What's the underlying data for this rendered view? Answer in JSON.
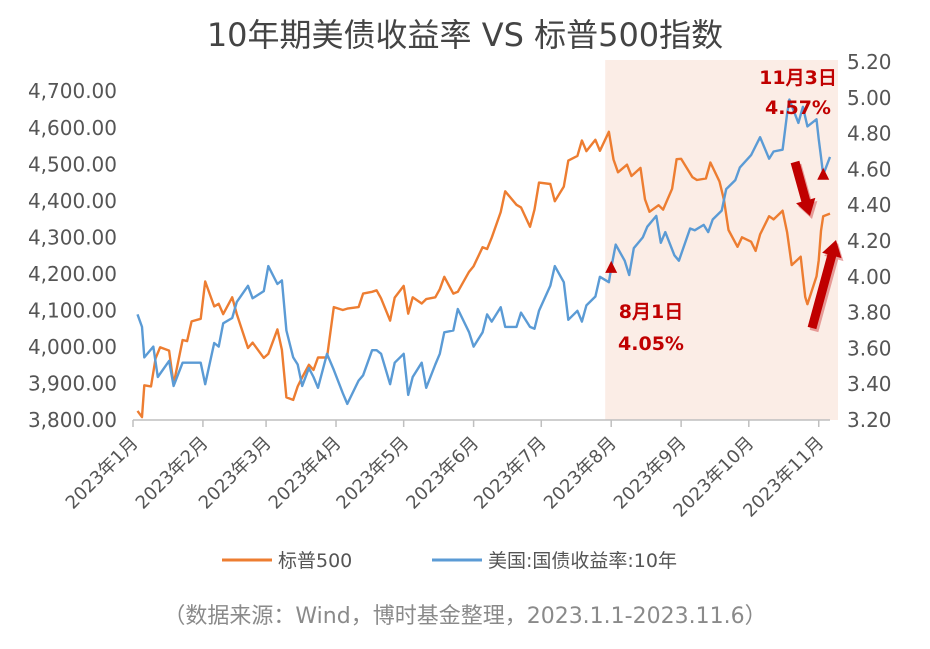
{
  "title": "10年期美债收益率 VS 标普500指数",
  "source_note": "（数据来源：Wind，博时基金整理，2023.1.1-2023.11.6）",
  "colors": {
    "sp500": "#ED7D31",
    "yield": "#5B9BD5",
    "highlight": "#FBEDE6",
    "annotation": "#C00000"
  },
  "chart_data": {
    "type": "line",
    "x_tick_labels": [
      "2023年1月",
      "2023年2月",
      "2023年3月",
      "2023年4月",
      "2023年5月",
      "2023年6月",
      "2023年7月",
      "2023年8月",
      "2023年9月",
      "2023年10月",
      "2023年11月"
    ],
    "x_range": [
      "2023-01-01",
      "2023-11-06"
    ],
    "y_left": {
      "ticks": [
        3800,
        3900,
        4000,
        4100,
        4200,
        4300,
        4400,
        4500,
        4600,
        4700
      ],
      "tick_labels": [
        "3,800.00",
        "3,900.00",
        "4,000.00",
        "4,100.00",
        "4,200.00",
        "4,300.00",
        "4,400.00",
        "4,500.00",
        "4,600.00",
        "4,700.00"
      ],
      "range": [
        3800,
        4780
      ]
    },
    "y_right": {
      "ticks": [
        3.2,
        3.4,
        3.6,
        3.8,
        4.0,
        4.2,
        4.4,
        4.6,
        4.8,
        5.0,
        5.2
      ],
      "tick_labels": [
        "3.20",
        "3.40",
        "3.60",
        "3.80",
        "4.00",
        "4.20",
        "4.40",
        "4.60",
        "4.80",
        "5.00",
        "5.20"
      ],
      "range": [
        3.2,
        5.2
      ]
    },
    "highlight_range": [
      "2023-08-01",
      "2023-11-06"
    ],
    "legend_position": "bottom",
    "series": [
      {
        "name": "标普500",
        "axis": "left",
        "points": [
          [
            "2023-01-03",
            3825
          ],
          [
            "2023-01-05",
            3808
          ],
          [
            "2023-01-06",
            3895
          ],
          [
            "2023-01-09",
            3892
          ],
          [
            "2023-01-11",
            3969
          ],
          [
            "2023-01-13",
            3999
          ],
          [
            "2023-01-17",
            3990
          ],
          [
            "2023-01-19",
            3898
          ],
          [
            "2023-01-23",
            4019
          ],
          [
            "2023-01-25",
            4016
          ],
          [
            "2023-01-27",
            4070
          ],
          [
            "2023-01-31",
            4077
          ],
          [
            "2023-02-02",
            4179
          ],
          [
            "2023-02-06",
            4111
          ],
          [
            "2023-02-08",
            4118
          ],
          [
            "2023-02-10",
            4090
          ],
          [
            "2023-02-14",
            4136
          ],
          [
            "2023-02-16",
            4090
          ],
          [
            "2023-02-21",
            3997
          ],
          [
            "2023-02-23",
            4012
          ],
          [
            "2023-02-28",
            3970
          ],
          [
            "2023-03-02",
            3981
          ],
          [
            "2023-03-06",
            4048
          ],
          [
            "2023-03-08",
            3992
          ],
          [
            "2023-03-10",
            3862
          ],
          [
            "2023-03-13",
            3855
          ],
          [
            "2023-03-15",
            3892
          ],
          [
            "2023-03-17",
            3917
          ],
          [
            "2023-03-20",
            3951
          ],
          [
            "2023-03-22",
            3937
          ],
          [
            "2023-03-24",
            3971
          ],
          [
            "2023-03-28",
            3971
          ],
          [
            "2023-03-31",
            4109
          ],
          [
            "2023-04-04",
            4101
          ],
          [
            "2023-04-06",
            4105
          ],
          [
            "2023-04-11",
            4109
          ],
          [
            "2023-04-13",
            4146
          ],
          [
            "2023-04-17",
            4151
          ],
          [
            "2023-04-19",
            4155
          ],
          [
            "2023-04-21",
            4133
          ],
          [
            "2023-04-25",
            4072
          ],
          [
            "2023-04-27",
            4135
          ],
          [
            "2023-05-01",
            4167
          ],
          [
            "2023-05-03",
            4091
          ],
          [
            "2023-05-05",
            4136
          ],
          [
            "2023-05-09",
            4119
          ],
          [
            "2023-05-11",
            4131
          ],
          [
            "2023-05-15",
            4136
          ],
          [
            "2023-05-17",
            4158
          ],
          [
            "2023-05-19",
            4192
          ],
          [
            "2023-05-23",
            4146
          ],
          [
            "2023-05-25",
            4151
          ],
          [
            "2023-05-30",
            4206
          ],
          [
            "2023-06-01",
            4221
          ],
          [
            "2023-06-05",
            4273
          ],
          [
            "2023-06-07",
            4268
          ],
          [
            "2023-06-09",
            4299
          ],
          [
            "2023-06-13",
            4369
          ],
          [
            "2023-06-15",
            4426
          ],
          [
            "2023-06-20",
            4389
          ],
          [
            "2023-06-22",
            4382
          ],
          [
            "2023-06-26",
            4329
          ],
          [
            "2023-06-28",
            4376
          ],
          [
            "2023-06-30",
            4450
          ],
          [
            "2023-07-05",
            4446
          ],
          [
            "2023-07-07",
            4399
          ],
          [
            "2023-07-11",
            4439
          ],
          [
            "2023-07-13",
            4510
          ],
          [
            "2023-07-17",
            4523
          ],
          [
            "2023-07-19",
            4565
          ],
          [
            "2023-07-21",
            4536
          ],
          [
            "2023-07-25",
            4567
          ],
          [
            "2023-07-27",
            4537
          ],
          [
            "2023-07-31",
            4589
          ],
          [
            "2023-08-02",
            4513
          ],
          [
            "2023-08-04",
            4478
          ],
          [
            "2023-08-08",
            4499
          ],
          [
            "2023-08-10",
            4468
          ],
          [
            "2023-08-14",
            4490
          ],
          [
            "2023-08-16",
            4404
          ],
          [
            "2023-08-18",
            4370
          ],
          [
            "2023-08-22",
            4388
          ],
          [
            "2023-08-24",
            4376
          ],
          [
            "2023-08-28",
            4433
          ],
          [
            "2023-08-30",
            4514
          ],
          [
            "2023-09-01",
            4515
          ],
          [
            "2023-09-06",
            4465
          ],
          [
            "2023-09-08",
            4457
          ],
          [
            "2023-09-12",
            4461
          ],
          [
            "2023-09-14",
            4505
          ],
          [
            "2023-09-18",
            4453
          ],
          [
            "2023-09-20",
            4402
          ],
          [
            "2023-09-22",
            4320
          ],
          [
            "2023-09-26",
            4274
          ],
          [
            "2023-09-28",
            4300
          ],
          [
            "2023-10-02",
            4288
          ],
          [
            "2023-10-04",
            4263
          ],
          [
            "2023-10-06",
            4308
          ],
          [
            "2023-10-10",
            4358
          ],
          [
            "2023-10-12",
            4349
          ],
          [
            "2023-10-16",
            4373
          ],
          [
            "2023-10-18",
            4314
          ],
          [
            "2023-10-20",
            4224
          ],
          [
            "2023-10-24",
            4247
          ],
          [
            "2023-10-26",
            4137
          ],
          [
            "2023-10-27",
            4117
          ],
          [
            "2023-10-31",
            4193
          ],
          [
            "2023-11-01",
            4237
          ],
          [
            "2023-11-02",
            4318
          ],
          [
            "2023-11-03",
            4358
          ],
          [
            "2023-11-06",
            4365
          ]
        ]
      },
      {
        "name": "美国:国债收益率:10年",
        "axis": "right",
        "points": [
          [
            "2023-01-03",
            3.79
          ],
          [
            "2023-01-05",
            3.72
          ],
          [
            "2023-01-06",
            3.55
          ],
          [
            "2023-01-10",
            3.61
          ],
          [
            "2023-01-12",
            3.44
          ],
          [
            "2023-01-17",
            3.53
          ],
          [
            "2023-01-19",
            3.39
          ],
          [
            "2023-01-23",
            3.52
          ],
          [
            "2023-01-27",
            3.52
          ],
          [
            "2023-01-31",
            3.52
          ],
          [
            "2023-02-02",
            3.4
          ],
          [
            "2023-02-06",
            3.63
          ],
          [
            "2023-02-08",
            3.61
          ],
          [
            "2023-02-10",
            3.74
          ],
          [
            "2023-02-14",
            3.77
          ],
          [
            "2023-02-16",
            3.86
          ],
          [
            "2023-02-21",
            3.95
          ],
          [
            "2023-02-23",
            3.88
          ],
          [
            "2023-02-28",
            3.92
          ],
          [
            "2023-03-02",
            4.06
          ],
          [
            "2023-03-06",
            3.96
          ],
          [
            "2023-03-08",
            3.98
          ],
          [
            "2023-03-10",
            3.7
          ],
          [
            "2023-03-13",
            3.55
          ],
          [
            "2023-03-15",
            3.51
          ],
          [
            "2023-03-17",
            3.39
          ],
          [
            "2023-03-20",
            3.49
          ],
          [
            "2023-03-22",
            3.44
          ],
          [
            "2023-03-24",
            3.38
          ],
          [
            "2023-03-28",
            3.57
          ],
          [
            "2023-03-31",
            3.48
          ],
          [
            "2023-04-04",
            3.35
          ],
          [
            "2023-04-06",
            3.29
          ],
          [
            "2023-04-11",
            3.42
          ],
          [
            "2023-04-13",
            3.45
          ],
          [
            "2023-04-17",
            3.59
          ],
          [
            "2023-04-19",
            3.59
          ],
          [
            "2023-04-21",
            3.57
          ],
          [
            "2023-04-25",
            3.4
          ],
          [
            "2023-04-27",
            3.52
          ],
          [
            "2023-05-01",
            3.57
          ],
          [
            "2023-05-03",
            3.34
          ],
          [
            "2023-05-05",
            3.44
          ],
          [
            "2023-05-09",
            3.52
          ],
          [
            "2023-05-11",
            3.38
          ],
          [
            "2023-05-15",
            3.51
          ],
          [
            "2023-05-17",
            3.57
          ],
          [
            "2023-05-19",
            3.69
          ],
          [
            "2023-05-23",
            3.7
          ],
          [
            "2023-05-25",
            3.82
          ],
          [
            "2023-05-30",
            3.69
          ],
          [
            "2023-06-01",
            3.61
          ],
          [
            "2023-06-05",
            3.69
          ],
          [
            "2023-06-07",
            3.79
          ],
          [
            "2023-06-09",
            3.75
          ],
          [
            "2023-06-13",
            3.83
          ],
          [
            "2023-06-15",
            3.72
          ],
          [
            "2023-06-20",
            3.72
          ],
          [
            "2023-06-22",
            3.8
          ],
          [
            "2023-06-26",
            3.72
          ],
          [
            "2023-06-28",
            3.71
          ],
          [
            "2023-06-30",
            3.81
          ],
          [
            "2023-07-05",
            3.95
          ],
          [
            "2023-07-07",
            4.06
          ],
          [
            "2023-07-11",
            3.97
          ],
          [
            "2023-07-13",
            3.76
          ],
          [
            "2023-07-17",
            3.81
          ],
          [
            "2023-07-19",
            3.75
          ],
          [
            "2023-07-21",
            3.84
          ],
          [
            "2023-07-25",
            3.89
          ],
          [
            "2023-07-27",
            4.0
          ],
          [
            "2023-07-31",
            3.97
          ],
          [
            "2023-08-01",
            4.05
          ],
          [
            "2023-08-03",
            4.18
          ],
          [
            "2023-08-07",
            4.09
          ],
          [
            "2023-08-09",
            4.01
          ],
          [
            "2023-08-11",
            4.16
          ],
          [
            "2023-08-15",
            4.22
          ],
          [
            "2023-08-17",
            4.28
          ],
          [
            "2023-08-21",
            4.34
          ],
          [
            "2023-08-23",
            4.19
          ],
          [
            "2023-08-25",
            4.25
          ],
          [
            "2023-08-29",
            4.12
          ],
          [
            "2023-08-31",
            4.09
          ],
          [
            "2023-09-05",
            4.27
          ],
          [
            "2023-09-07",
            4.26
          ],
          [
            "2023-09-11",
            4.29
          ],
          [
            "2023-09-13",
            4.25
          ],
          [
            "2023-09-15",
            4.32
          ],
          [
            "2023-09-19",
            4.37
          ],
          [
            "2023-09-21",
            4.49
          ],
          [
            "2023-09-25",
            4.54
          ],
          [
            "2023-09-27",
            4.61
          ],
          [
            "2023-10-02",
            4.68
          ],
          [
            "2023-10-04",
            4.73
          ],
          [
            "2023-10-06",
            4.78
          ],
          [
            "2023-10-10",
            4.66
          ],
          [
            "2023-10-12",
            4.7
          ],
          [
            "2023-10-16",
            4.71
          ],
          [
            "2023-10-18",
            4.91
          ],
          [
            "2023-10-19",
            4.99
          ],
          [
            "2023-10-23",
            4.86
          ],
          [
            "2023-10-25",
            4.95
          ],
          [
            "2023-10-27",
            4.84
          ],
          [
            "2023-10-31",
            4.88
          ],
          [
            "2023-11-01",
            4.77
          ],
          [
            "2023-11-02",
            4.67
          ],
          [
            "2023-11-03",
            4.57
          ],
          [
            "2023-11-06",
            4.67
          ]
        ]
      }
    ],
    "annotations": [
      {
        "date_label": "8月1日",
        "value_label": "4.05%",
        "x": "2023-08-01",
        "y": 4.05,
        "axis": "right"
      },
      {
        "date_label": "11月3日",
        "value_label": "4.57%",
        "x": "2023-11-03",
        "y": 4.57,
        "axis": "right"
      }
    ]
  }
}
